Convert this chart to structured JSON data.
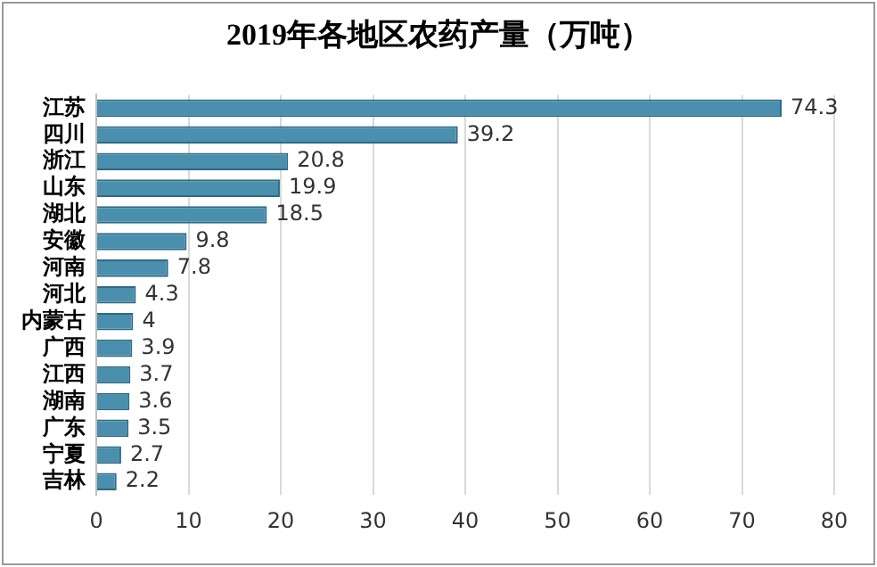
{
  "chart_data": {
    "type": "bar",
    "orientation": "horizontal",
    "title": "2019年各地区农药产量（万吨）",
    "categories": [
      "江苏",
      "四川",
      "浙江",
      "山东",
      "湖北",
      "安徽",
      "河南",
      "河北",
      "内蒙古",
      "广西",
      "江西",
      "湖南",
      "广东",
      "宁夏",
      "吉林"
    ],
    "values": [
      74.3,
      39.2,
      20.8,
      19.9,
      18.5,
      9.8,
      7.8,
      4.3,
      4,
      3.9,
      3.7,
      3.6,
      3.5,
      2.7,
      2.2
    ],
    "color": "#4a8fae",
    "xlim": [
      0,
      80
    ],
    "xticks": [
      0,
      10,
      20,
      30,
      40,
      50,
      60,
      70,
      80
    ],
    "grid": "x",
    "data_labels": true,
    "legend": false
  }
}
